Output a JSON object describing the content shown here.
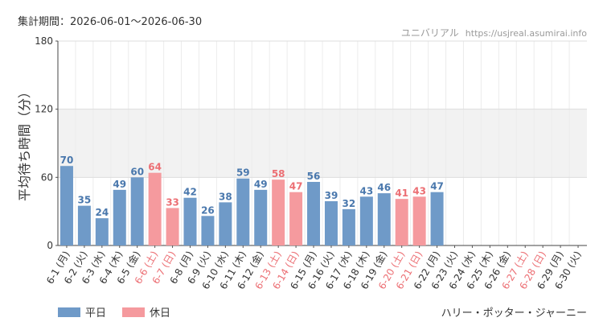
{
  "header": {
    "period": "集計期間：2026-06-01～2026-06-30",
    "source_name": "ユニバリアル",
    "source_url": "https://usjreal.asumirai.info"
  },
  "attraction": "ハリー・ポッター・ジャーニー",
  "legend": [
    {
      "name": "平日",
      "color": "#6f9ac8"
    },
    {
      "name": "休日",
      "color": "#f59a9e"
    }
  ],
  "chart_data": {
    "type": "bar",
    "title": "",
    "xlabel": "",
    "ylabel": "平均待ち時間（分）",
    "ylim": [
      0,
      180
    ],
    "yticks": [
      0,
      60,
      120,
      180
    ],
    "grid": true,
    "categories": [
      "6-1 (月)",
      "6-2 (火)",
      "6-3 (水)",
      "6-4 (木)",
      "6-5 (金)",
      "6-6 (土)",
      "6-7 (日)",
      "6-8 (月)",
      "6-9 (火)",
      "6-10 (水)",
      "6-11 (木)",
      "6-12 (金)",
      "6-13 (土)",
      "6-14 (日)",
      "6-15 (月)",
      "6-16 (火)",
      "6-17 (水)",
      "6-18 (木)",
      "6-19 (金)",
      "6-20 (土)",
      "6-21 (日)",
      "6-22 (月)",
      "6-23 (火)",
      "6-24 (水)",
      "6-25 (木)",
      "6-26 (金)",
      "6-27 (土)",
      "6-28 (日)",
      "6-29 (月)",
      "6-30 (火)"
    ],
    "values": [
      70,
      35,
      24,
      49,
      60,
      64,
      33,
      42,
      26,
      38,
      59,
      49,
      58,
      47,
      56,
      39,
      32,
      43,
      46,
      41,
      43,
      47,
      null,
      null,
      null,
      null,
      null,
      null,
      null,
      null
    ],
    "holiday": [
      false,
      false,
      false,
      false,
      false,
      true,
      true,
      false,
      false,
      false,
      false,
      false,
      true,
      true,
      false,
      false,
      false,
      false,
      false,
      true,
      true,
      false,
      false,
      false,
      false,
      false,
      true,
      true,
      false,
      false
    ],
    "colors": {
      "weekday": "#6f9ac8",
      "holiday": "#f59a9e",
      "weekday_label": "#4a78ad",
      "holiday_label": "#ec6f74",
      "band": "#f2f2f2"
    }
  }
}
